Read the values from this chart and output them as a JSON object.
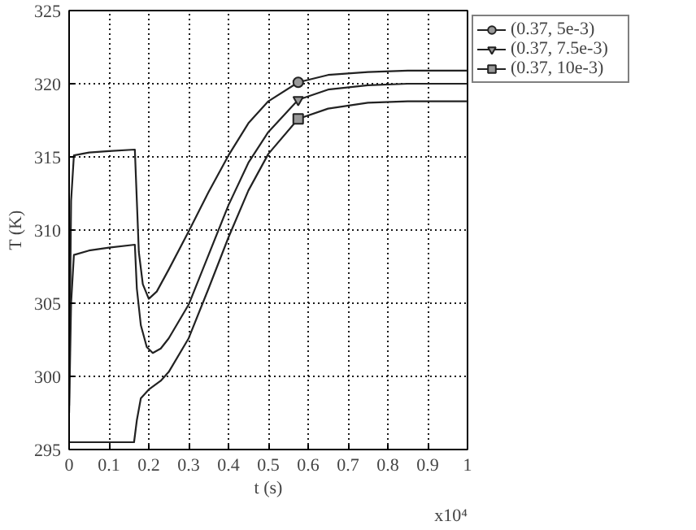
{
  "chart_data": {
    "type": "line",
    "xlabel": "t (s)",
    "ylabel": "T (K)",
    "annotations": [
      "x10⁴"
    ],
    "xlim": [
      0,
      1
    ],
    "ylim": [
      295,
      325
    ],
    "xticks": [
      0,
      0.1,
      0.2,
      0.3,
      0.4,
      0.5,
      0.6,
      0.7,
      0.8,
      0.9,
      1
    ],
    "yticks": [
      295,
      300,
      305,
      310,
      315,
      320,
      325
    ],
    "grid": true,
    "legend": "top right",
    "line_style": "solid",
    "series": [
      {
        "name": "(0.37, 5e-3)",
        "color": "#222222",
        "x": [
          0,
          0.005,
          0.012,
          0.05,
          0.1,
          0.165,
          0.17,
          0.175,
          0.185,
          0.2,
          0.22,
          0.25,
          0.3,
          0.35,
          0.4,
          0.45,
          0.5,
          0.575,
          0.65,
          0.75,
          0.85,
          1.0
        ],
        "values": [
          298,
          312,
          315.1,
          315.3,
          315.4,
          315.5,
          312,
          308.5,
          306.3,
          305.3,
          305.8,
          307.3,
          309.9,
          312.6,
          315.1,
          317.3,
          318.8,
          320.1,
          320.6,
          320.8,
          320.9,
          320.9
        ]
      },
      {
        "name": "(0.37, 7.5e-3)",
        "color": "#222222",
        "x": [
          0,
          0.005,
          0.012,
          0.05,
          0.1,
          0.165,
          0.17,
          0.18,
          0.195,
          0.21,
          0.23,
          0.25,
          0.3,
          0.35,
          0.4,
          0.45,
          0.5,
          0.575,
          0.65,
          0.75,
          0.85,
          1.0
        ],
        "values": [
          297.5,
          305,
          308.3,
          308.6,
          308.8,
          309,
          306,
          303.5,
          302,
          301.6,
          301.9,
          302.6,
          304.9,
          308.3,
          311.7,
          314.6,
          316.7,
          318.9,
          319.6,
          319.9,
          320,
          320
        ]
      },
      {
        "name": "(0.37, 10e-3)",
        "color": "#222222",
        "x": [
          0,
          0.1,
          0.163,
          0.17,
          0.18,
          0.2,
          0.23,
          0.25,
          0.3,
          0.35,
          0.4,
          0.45,
          0.5,
          0.575,
          0.65,
          0.75,
          0.85,
          1.0
        ],
        "values": [
          295.5,
          295.5,
          295.5,
          297,
          298.5,
          299.1,
          299.7,
          300.3,
          302.6,
          306,
          309.5,
          312.7,
          315.2,
          317.6,
          318.3,
          318.7,
          318.8,
          318.8
        ]
      },
      {
        "type": "scatter",
        "color": "#222222",
        "marker": "circle",
        "x": [
          0.575
        ],
        "values": [
          320.1
        ]
      },
      {
        "type": "scatter",
        "color": "#222222",
        "marker": "triangle",
        "x": [
          0.575
        ],
        "values": [
          318.9
        ]
      },
      {
        "type": "scatter",
        "color": "#222222",
        "marker": "square",
        "x": [
          0.575
        ],
        "values": [
          317.6
        ]
      }
    ]
  }
}
